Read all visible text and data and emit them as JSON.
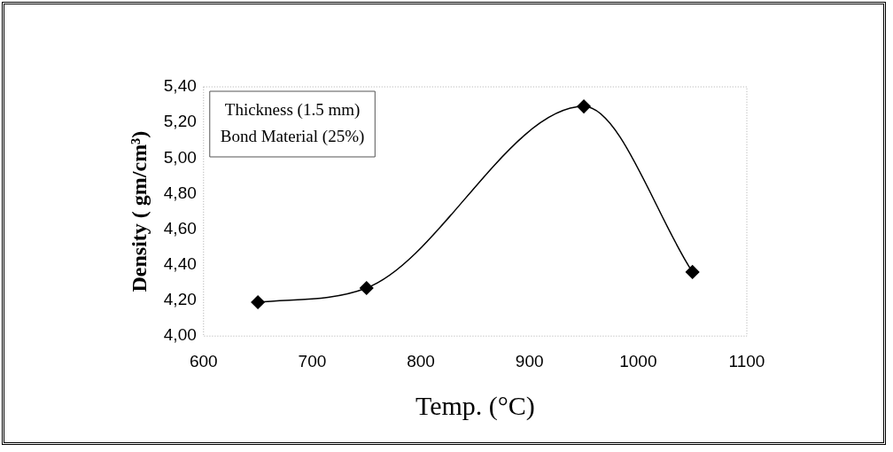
{
  "chart_data": {
    "type": "line",
    "xlabel": "Temp. (°C)",
    "ylabel": "Density ( gm/cm³)",
    "x": [
      650,
      750,
      950,
      1050
    ],
    "series": [
      {
        "color": "#000000",
        "values": [
          4.19,
          4.27,
          5.29,
          4.36
        ]
      }
    ],
    "xlim": [
      600,
      1100
    ],
    "xticks": [
      600,
      700,
      800,
      900,
      1000,
      1100
    ],
    "ylim": [
      4.0,
      5.4
    ],
    "yticks": [
      {
        "value": 4.0,
        "label": "4,00"
      },
      {
        "value": 4.2,
        "label": "4,20"
      },
      {
        "value": 4.4,
        "label": "4,40"
      },
      {
        "value": 4.6,
        "label": "4,60"
      },
      {
        "value": 4.8,
        "label": "4,80"
      },
      {
        "value": 5.0,
        "label": "5,00"
      },
      {
        "value": 5.2,
        "label": "5,20"
      },
      {
        "value": 5.4,
        "label": "5,40"
      }
    ],
    "annotations": [
      "Thickness (1.5 mm)\nBond Material (25%)"
    ],
    "marker": "diamond",
    "grid": false,
    "legend": false
  }
}
